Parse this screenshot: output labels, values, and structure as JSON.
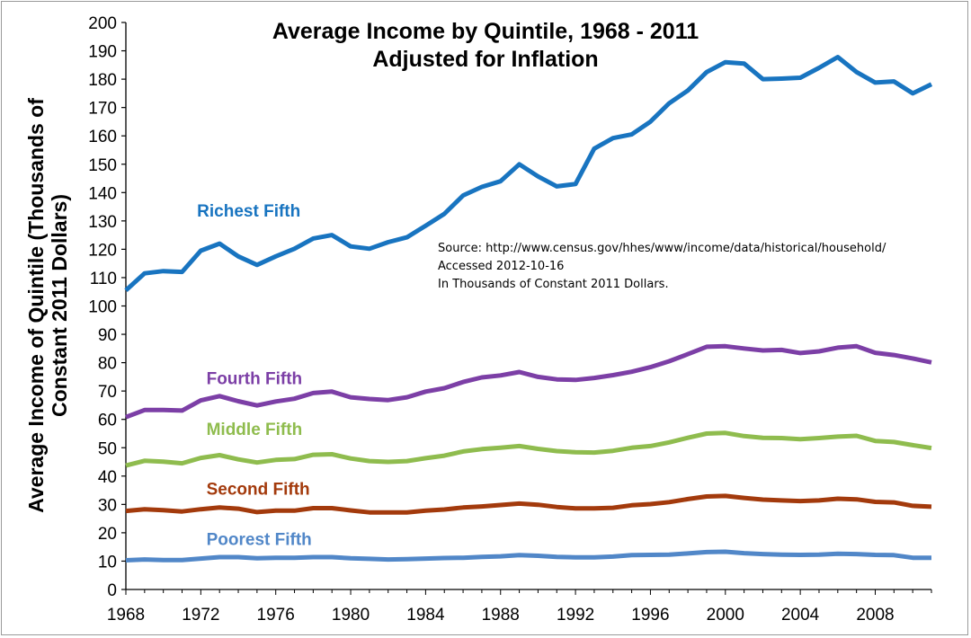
{
  "chart_data": {
    "type": "line",
    "title": "Average Income by Quintile, 1968 - 2011",
    "subtitle": "Adjusted for Inflation",
    "ylabel_line1": "Average Income of Quintile (Thousands of",
    "ylabel_line2": "Constant 2011 Dollars)",
    "xlabel": "",
    "ylim": [
      0,
      200
    ],
    "xlim": [
      1968,
      2011
    ],
    "y_ticks": [
      0,
      10,
      20,
      30,
      40,
      50,
      60,
      70,
      80,
      90,
      100,
      110,
      120,
      130,
      140,
      150,
      160,
      170,
      180,
      190,
      200
    ],
    "x_ticks": [
      1968,
      1972,
      1976,
      1980,
      1984,
      1988,
      1992,
      1996,
      2000,
      2004,
      2008
    ],
    "grid": false,
    "source_lines": [
      "Source: http://www.census.gov/hhes/www/income/data/historical/household/",
      "Accessed 2012-10-16",
      "In Thousands of Constant 2011 Dollars."
    ],
    "x": [
      1968,
      1969,
      1970,
      1971,
      1972,
      1973,
      1974,
      1975,
      1976,
      1977,
      1978,
      1979,
      1980,
      1981,
      1982,
      1983,
      1984,
      1985,
      1986,
      1987,
      1988,
      1989,
      1990,
      1991,
      1992,
      1993,
      1994,
      1995,
      1996,
      1997,
      1998,
      1999,
      2000,
      2001,
      2002,
      2003,
      2004,
      2005,
      2006,
      2007,
      2008,
      2009,
      2010,
      2011
    ],
    "series": [
      {
        "name": "Richest Fifth",
        "label": "Richest Fifth",
        "color": "#1874c0",
        "values": [
          105.5,
          111.5,
          112.3,
          112.0,
          119.5,
          122.0,
          117.5,
          114.5,
          117.5,
          120.2,
          123.8,
          125.0,
          121.0,
          120.2,
          122.5,
          124.2,
          128.3,
          132.5,
          139.0,
          142.0,
          144.0,
          150.0,
          145.7,
          142.2,
          143.0,
          155.5,
          159.2,
          160.5,
          165.0,
          171.5,
          176.0,
          182.5,
          186.0,
          185.5,
          180.0,
          180.2,
          180.5,
          184.0,
          187.8,
          182.5,
          178.8,
          179.2,
          175.0,
          178.2
        ]
      },
      {
        "name": "Fourth Fifth",
        "label": "Fourth Fifth",
        "color": "#7c3fa6",
        "values": [
          60.8,
          63.3,
          63.3,
          63.1,
          66.7,
          68.2,
          66.4,
          64.9,
          66.3,
          67.3,
          69.3,
          69.8,
          67.8,
          67.2,
          66.8,
          67.8,
          69.8,
          71.0,
          73.2,
          74.8,
          75.5,
          76.7,
          75.0,
          74.1,
          73.9,
          74.6,
          75.6,
          76.8,
          78.4,
          80.5,
          83.0,
          85.6,
          85.8,
          85.0,
          84.3,
          84.5,
          83.4,
          84.0,
          85.3,
          85.8,
          83.5,
          82.7,
          81.5,
          80.1
        ]
      },
      {
        "name": "Middle Fifth",
        "label": "Middle Fifth",
        "color": "#8fbc4e",
        "values": [
          43.7,
          45.4,
          45.1,
          44.5,
          46.4,
          47.4,
          45.9,
          44.8,
          45.7,
          46.0,
          47.5,
          47.7,
          46.2,
          45.3,
          45.0,
          45.3,
          46.3,
          47.2,
          48.7,
          49.5,
          50.0,
          50.6,
          49.6,
          48.8,
          48.4,
          48.3,
          48.9,
          50.0,
          50.6,
          51.9,
          53.5,
          55.0,
          55.2,
          54.1,
          53.5,
          53.4,
          53.0,
          53.4,
          53.9,
          54.2,
          52.4,
          52.0,
          50.9,
          49.9
        ]
      },
      {
        "name": "Second Fifth",
        "label": "Second Fifth",
        "color": "#a33a0c",
        "values": [
          27.7,
          28.3,
          28.0,
          27.5,
          28.3,
          28.9,
          28.5,
          27.3,
          27.8,
          27.8,
          28.7,
          28.7,
          27.9,
          27.2,
          27.2,
          27.2,
          27.8,
          28.2,
          28.9,
          29.3,
          29.8,
          30.3,
          29.9,
          29.1,
          28.6,
          28.6,
          28.8,
          29.7,
          30.1,
          30.8,
          31.9,
          32.8,
          33.0,
          32.3,
          31.7,
          31.4,
          31.2,
          31.4,
          32.0,
          31.8,
          30.9,
          30.7,
          29.5,
          29.2
        ]
      },
      {
        "name": "Poorest Fifth",
        "label": "Poorest Fifth",
        "color": "#5187c8",
        "values": [
          10.3,
          10.6,
          10.4,
          10.4,
          10.9,
          11.4,
          11.4,
          11.0,
          11.2,
          11.2,
          11.4,
          11.4,
          11.0,
          10.8,
          10.6,
          10.7,
          10.9,
          11.1,
          11.2,
          11.5,
          11.7,
          12.1,
          11.9,
          11.5,
          11.3,
          11.3,
          11.6,
          12.1,
          12.2,
          12.3,
          12.7,
          13.2,
          13.3,
          12.8,
          12.5,
          12.3,
          12.2,
          12.3,
          12.6,
          12.5,
          12.2,
          12.1,
          11.2,
          11.2
        ]
      }
    ]
  }
}
